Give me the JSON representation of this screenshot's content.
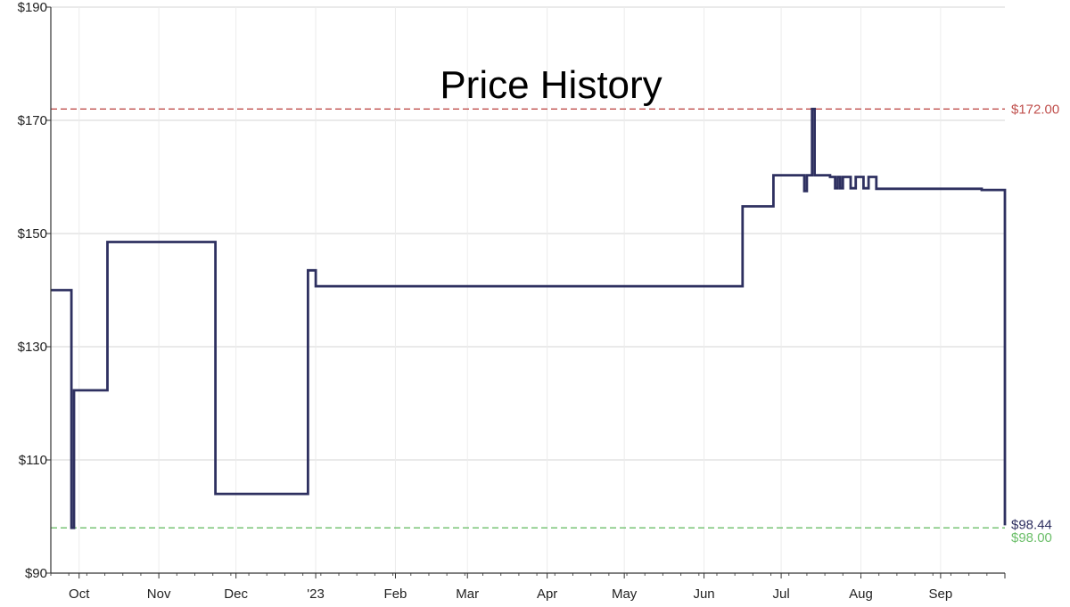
{
  "chart_data": {
    "type": "line",
    "title": "Price History",
    "xlabel": "",
    "ylabel": "",
    "ylim": [
      90,
      190
    ],
    "xlim": [
      "2022-09-20",
      "2023-09-26"
    ],
    "grid": true,
    "y_ticks": [
      90,
      110,
      130,
      150,
      170,
      190
    ],
    "y_tick_labels": [
      "$90",
      "$110",
      "$130",
      "$150",
      "$170",
      "$190"
    ],
    "x_ticks": [
      {
        "date": "2022-10-01",
        "label": "Oct"
      },
      {
        "date": "2022-11-01",
        "label": "Nov"
      },
      {
        "date": "2022-12-01",
        "label": "Dec"
      },
      {
        "date": "2023-01-01",
        "label": "'23"
      },
      {
        "date": "2023-02-01",
        "label": "Feb"
      },
      {
        "date": "2023-03-01",
        "label": "Mar"
      },
      {
        "date": "2023-04-01",
        "label": "Apr"
      },
      {
        "date": "2023-05-01",
        "label": "May"
      },
      {
        "date": "2023-06-01",
        "label": "Jun"
      },
      {
        "date": "2023-07-01",
        "label": "Jul"
      },
      {
        "date": "2023-08-01",
        "label": "Aug"
      },
      {
        "date": "2023-09-01",
        "label": "Sep"
      }
    ],
    "reference_lines": [
      {
        "value": 172.0,
        "label": "$172.00",
        "color": "#c0504d"
      },
      {
        "value": 98.0,
        "label": "$98.00",
        "color": "#6cbf6a"
      }
    ],
    "current_price": {
      "value": 98.44,
      "label": "$98.44",
      "color": "#2e3060"
    },
    "series": [
      {
        "color": "#2e3060",
        "step": true,
        "points": [
          [
            "2022-09-20",
            140.0
          ],
          [
            "2022-09-28",
            98.0
          ],
          [
            "2022-09-29",
            122.3
          ],
          [
            "2022-10-12",
            148.5
          ],
          [
            "2022-11-23",
            104.0
          ],
          [
            "2022-12-29",
            143.5
          ],
          [
            "2023-01-01",
            140.7
          ],
          [
            "2023-06-16",
            154.8
          ],
          [
            "2023-06-28",
            160.3
          ],
          [
            "2023-07-10",
            157.5
          ],
          [
            "2023-07-11",
            160.3
          ],
          [
            "2023-07-13",
            172.0
          ],
          [
            "2023-07-14",
            160.3
          ],
          [
            "2023-07-20",
            160.0
          ],
          [
            "2023-07-22",
            158.0
          ],
          [
            "2023-07-23",
            160.0
          ],
          [
            "2023-07-24",
            158.0
          ],
          [
            "2023-07-25",
            160.0
          ],
          [
            "2023-07-28",
            158.0
          ],
          [
            "2023-07-30",
            160.0
          ],
          [
            "2023-08-02",
            158.0
          ],
          [
            "2023-08-04",
            160.0
          ],
          [
            "2023-08-07",
            157.9
          ],
          [
            "2023-09-17",
            157.7
          ],
          [
            "2023-09-26",
            98.44
          ]
        ]
      }
    ]
  }
}
